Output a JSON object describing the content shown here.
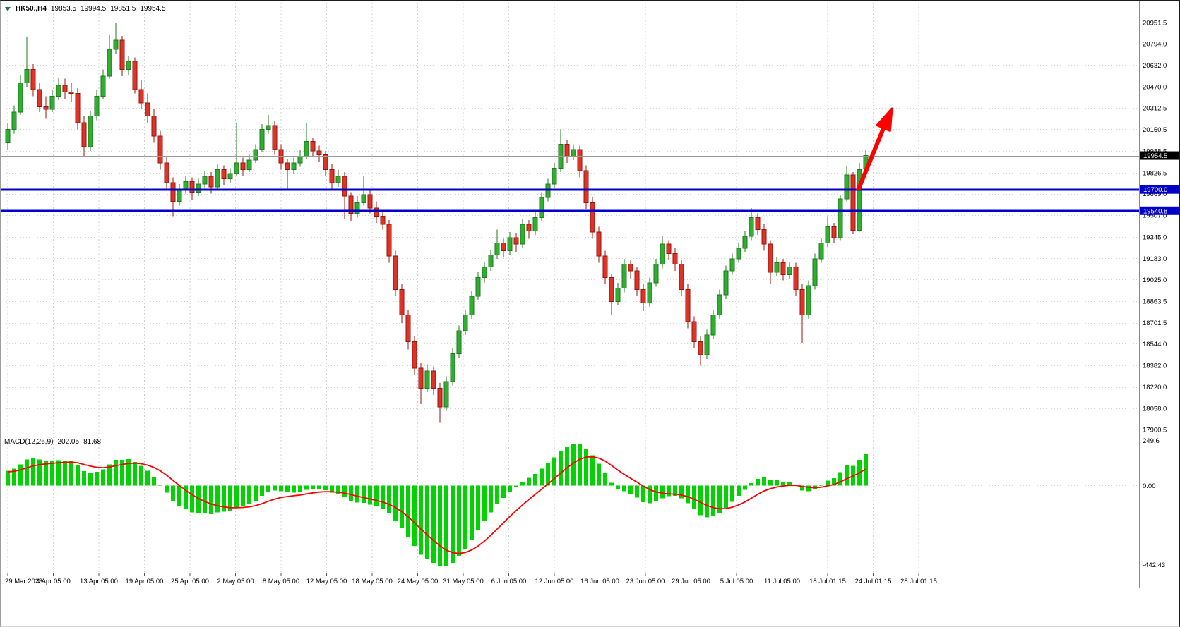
{
  "chart_data": {
    "type": "candlestick",
    "symbol": "HK50.,H4",
    "timeframe": "H4",
    "ohlc": {
      "open": "19853.5",
      "high": "19994.5",
      "low": "19851.5",
      "close": "19954.5"
    },
    "price_axis": {
      "min": 17900.5,
      "max": 20951.5,
      "grid_labels": [
        "20951.5",
        "20794.0",
        "20632.0",
        "20470.0",
        "20312.5",
        "20150.5",
        "19988.5",
        "19826.5",
        "19669.0",
        "19507.0",
        "19345.0",
        "19183.0",
        "19025.0",
        "18863.5",
        "18701.5",
        "18544.0",
        "18382.0",
        "18220.0",
        "18058.0",
        "17900.5"
      ]
    },
    "current_price": {
      "value": 19954.5,
      "label": "19954.5"
    },
    "support_resistance_lines": [
      {
        "value": 19700.0,
        "label": "19700.0"
      },
      {
        "value": 19540.8,
        "label": "19540.8"
      }
    ],
    "x_axis": {
      "labels": [
        "29 Mar 2023",
        "4 Apr 05:00",
        "13 Apr 05:00",
        "19 Apr 05:00",
        "25 Apr 05:00",
        "2 May 05:00",
        "8 May 05:00",
        "12 May 05:00",
        "18 May 05:00",
        "24 May 05:00",
        "31 May 05:00",
        "6 Jun 05:00",
        "12 Jun 05:00",
        "16 Jun 05:00",
        "23 Jun 05:00",
        "29 Jun 05:00",
        "5 Jul 05:00",
        "11 Jul 05:00",
        "18 Jul 01:15",
        "24 Jul 01:15",
        "28 Jul 01:15"
      ]
    },
    "candles": [
      [
        20050,
        20200,
        20000,
        20150
      ],
      [
        20150,
        20330,
        20120,
        20280
      ],
      [
        20280,
        20560,
        20260,
        20500
      ],
      [
        20500,
        20840,
        20470,
        20600
      ],
      [
        20600,
        20640,
        20400,
        20450
      ],
      [
        20450,
        20500,
        20280,
        20320
      ],
      [
        20320,
        20400,
        20230,
        20300
      ],
      [
        20300,
        20450,
        20280,
        20400
      ],
      [
        20400,
        20540,
        20370,
        20480
      ],
      [
        20480,
        20530,
        20380,
        20430
      ],
      [
        20430,
        20500,
        20360,
        20420
      ],
      [
        20420,
        20460,
        20150,
        20200
      ],
      [
        20200,
        20250,
        19950,
        20020
      ],
      [
        20020,
        20290,
        19990,
        20250
      ],
      [
        20250,
        20450,
        20220,
        20400
      ],
      [
        20400,
        20600,
        20380,
        20550
      ],
      [
        20550,
        20860,
        20530,
        20750
      ],
      [
        20750,
        20950,
        20720,
        20820
      ],
      [
        20820,
        20850,
        20550,
        20600
      ],
      [
        20600,
        20700,
        20560,
        20660
      ],
      [
        20660,
        20690,
        20420,
        20450
      ],
      [
        20450,
        20520,
        20300,
        20350
      ],
      [
        20350,
        20420,
        20200,
        20250
      ],
      [
        20250,
        20300,
        20050,
        20100
      ],
      [
        20100,
        20140,
        19850,
        19900
      ],
      [
        19900,
        19950,
        19700,
        19750
      ],
      [
        19750,
        19790,
        19500,
        19610
      ],
      [
        19610,
        19740,
        19580,
        19700
      ],
      [
        19700,
        19800,
        19670,
        19760
      ],
      [
        19760,
        19790,
        19620,
        19680
      ],
      [
        19680,
        19780,
        19650,
        19740
      ],
      [
        19740,
        19840,
        19710,
        19800
      ],
      [
        19800,
        19830,
        19670,
        19720
      ],
      [
        19720,
        19890,
        19700,
        19850
      ],
      [
        19850,
        19880,
        19730,
        19780
      ],
      [
        19780,
        19860,
        19750,
        19820
      ],
      [
        19820,
        20200,
        19800,
        19900
      ],
      [
        19900,
        19940,
        19800,
        19850
      ],
      [
        19850,
        19960,
        19830,
        19920
      ],
      [
        19920,
        20040,
        19900,
        20000
      ],
      [
        20000,
        20190,
        19980,
        20150
      ],
      [
        20150,
        20260,
        20120,
        20180
      ],
      [
        20180,
        20210,
        19960,
        20000
      ],
      [
        20000,
        20040,
        19850,
        19900
      ],
      [
        19900,
        19930,
        19700,
        19850
      ],
      [
        19850,
        19940,
        19820,
        19900
      ],
      [
        19900,
        20000,
        19870,
        19950
      ],
      [
        19950,
        20200,
        19930,
        20060
      ],
      [
        20060,
        20090,
        19950,
        19990
      ],
      [
        19990,
        20030,
        19910,
        19960
      ],
      [
        19960,
        19990,
        19800,
        19850
      ],
      [
        19850,
        19890,
        19700,
        19750
      ],
      [
        19750,
        19850,
        19720,
        19800
      ],
      [
        19800,
        19830,
        19480,
        19650
      ],
      [
        19650,
        19680,
        19460,
        19520
      ],
      [
        19520,
        19650,
        19490,
        19600
      ],
      [
        19600,
        19800,
        19580,
        19660
      ],
      [
        19660,
        19700,
        19520,
        19560
      ],
      [
        19560,
        19610,
        19450,
        19500
      ],
      [
        19500,
        19540,
        19400,
        19440
      ],
      [
        19440,
        19470,
        19150,
        19200
      ],
      [
        19200,
        19240,
        18900,
        18950
      ],
      [
        18950,
        18990,
        18700,
        18760
      ],
      [
        18760,
        18800,
        18500,
        18560
      ],
      [
        18560,
        18600,
        18310,
        18360
      ],
      [
        18360,
        18400,
        18090,
        18210
      ],
      [
        18210,
        18390,
        18180,
        18340
      ],
      [
        18340,
        18370,
        18160,
        18210
      ],
      [
        18210,
        18250,
        17950,
        18070
      ],
      [
        18070,
        18300,
        18040,
        18260
      ],
      [
        18260,
        18510,
        18230,
        18470
      ],
      [
        18470,
        18680,
        18440,
        18640
      ],
      [
        18640,
        18800,
        18610,
        18760
      ],
      [
        18760,
        18940,
        18730,
        18900
      ],
      [
        18900,
        19080,
        18870,
        19040
      ],
      [
        19040,
        19160,
        19000,
        19120
      ],
      [
        19120,
        19250,
        19090,
        19210
      ],
      [
        19210,
        19400,
        19180,
        19300
      ],
      [
        19300,
        19330,
        19190,
        19240
      ],
      [
        19240,
        19380,
        19210,
        19340
      ],
      [
        19340,
        19370,
        19230,
        19290
      ],
      [
        19290,
        19480,
        19260,
        19440
      ],
      [
        19440,
        19470,
        19330,
        19390
      ],
      [
        19390,
        19530,
        19360,
        19490
      ],
      [
        19490,
        19680,
        19460,
        19640
      ],
      [
        19640,
        19780,
        19610,
        19740
      ],
      [
        19740,
        19900,
        19710,
        19860
      ],
      [
        19860,
        20150,
        19830,
        20040
      ],
      [
        20040,
        20070,
        19900,
        19950
      ],
      [
        19950,
        20040,
        19920,
        20000
      ],
      [
        20000,
        20030,
        19790,
        19840
      ],
      [
        19840,
        19880,
        19550,
        19600
      ],
      [
        19600,
        19640,
        19330,
        19380
      ],
      [
        19380,
        19420,
        19150,
        19200
      ],
      [
        19200,
        19240,
        18990,
        19040
      ],
      [
        19040,
        19070,
        18760,
        18860
      ],
      [
        18860,
        19000,
        18830,
        18960
      ],
      [
        18960,
        19180,
        18930,
        19140
      ],
      [
        19140,
        19170,
        19030,
        19090
      ],
      [
        19090,
        19120,
        18900,
        18950
      ],
      [
        18950,
        18990,
        18790,
        18850
      ],
      [
        18850,
        19040,
        18820,
        19000
      ],
      [
        19000,
        19180,
        18970,
        19140
      ],
      [
        19140,
        19350,
        19110,
        19290
      ],
      [
        19290,
        19320,
        19170,
        19220
      ],
      [
        19220,
        19260,
        19090,
        19140
      ],
      [
        19140,
        19170,
        18900,
        18950
      ],
      [
        18950,
        18990,
        18660,
        18710
      ],
      [
        18710,
        18750,
        18510,
        18560
      ],
      [
        18560,
        18600,
        18380,
        18460
      ],
      [
        18460,
        18650,
        18430,
        18610
      ],
      [
        18610,
        18800,
        18580,
        18760
      ],
      [
        18760,
        18950,
        18730,
        18910
      ],
      [
        18910,
        19130,
        18880,
        19090
      ],
      [
        19090,
        19220,
        19060,
        19180
      ],
      [
        19180,
        19300,
        19150,
        19260
      ],
      [
        19260,
        19390,
        19230,
        19350
      ],
      [
        19350,
        19560,
        19320,
        19490
      ],
      [
        19490,
        19520,
        19360,
        19400
      ],
      [
        19400,
        19440,
        19240,
        19290
      ],
      [
        19290,
        19320,
        18990,
        19080
      ],
      [
        19080,
        19190,
        19050,
        19150
      ],
      [
        19150,
        19180,
        19020,
        19060
      ],
      [
        19060,
        19160,
        19030,
        19120
      ],
      [
        19120,
        19150,
        18900,
        18950
      ],
      [
        18950,
        18990,
        18545,
        18760
      ],
      [
        18760,
        19020,
        18730,
        18980
      ],
      [
        18980,
        19220,
        18950,
        19180
      ],
      [
        19180,
        19340,
        19150,
        19300
      ],
      [
        19300,
        19500,
        19270,
        19420
      ],
      [
        19420,
        19450,
        19300,
        19340
      ],
      [
        19340,
        19660,
        19320,
        19630
      ],
      [
        19630,
        19875,
        19610,
        19810
      ],
      [
        19810,
        19830,
        19365,
        19395
      ],
      [
        19395,
        19900,
        19385,
        19850
      ],
      [
        19853.5,
        19994.5,
        19851.5,
        19954.5
      ]
    ],
    "macd": {
      "label": "MACD(12,26,9)",
      "params": "12,26,9",
      "value_main": "202.05",
      "value_signal": "81.68",
      "axis": {
        "max": "249.6",
        "zero": "0.00",
        "min": "-442.43"
      }
    },
    "annotations": [
      {
        "type": "arrow-up",
        "color": "#FF0000"
      }
    ],
    "colors": {
      "bull": "#2FAE2F",
      "bull_border": "#1E7A1E",
      "bear": "#E03328",
      "bear_border": "#99150D",
      "macd_hist": "#00D300",
      "macd_signal": "#FF0000",
      "line_blue": "#0000C8",
      "grid": "#D2D2D2",
      "current_line": "#9A9A9A",
      "badge_black": "#000000",
      "axis_text": "#000000"
    }
  }
}
